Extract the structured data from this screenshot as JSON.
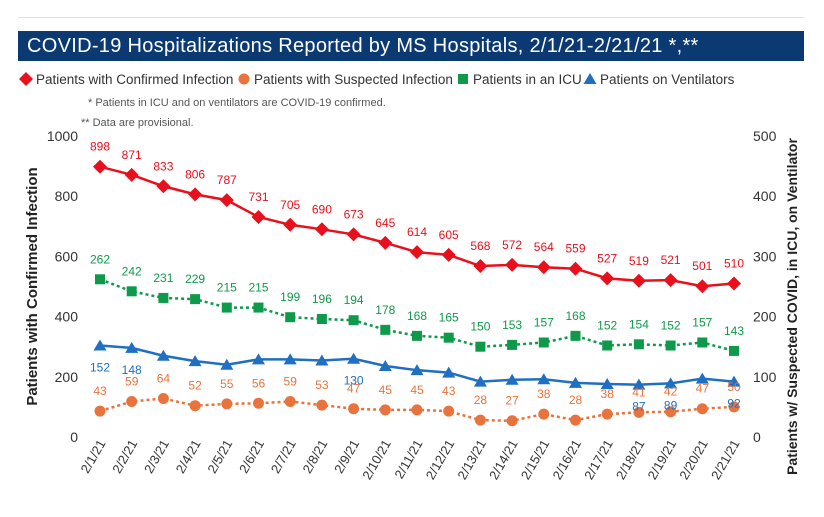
{
  "title": "COVID-19 Hospitalizations Reported by MS Hospitals, 2/1/21-2/21/21 *,**",
  "notes": [
    "* Patients in ICU and on ventilators are COVID-19 confirmed.",
    "** Data are provisional."
  ],
  "colors": {
    "title_bg": "#0b3a73",
    "confirmed": "#e8101c",
    "suspected": "#e8733c",
    "icu": "#0e9a4a",
    "ventilators": "#1f6fc2"
  },
  "chart_data": {
    "type": "line",
    "title": "COVID-19 Hospitalizations Reported by MS Hospitals, 2/1/21-2/21/21 *,**",
    "ylabel": "Patients with Confirmed Infection",
    "y2label": "Patients w/ Suspected COVID, in ICU, on Ventilator",
    "ylim": [
      0,
      1000
    ],
    "y2lim": [
      0,
      500
    ],
    "yticks": [
      0,
      200,
      400,
      600,
      800,
      1000
    ],
    "y2ticks": [
      0,
      100,
      200,
      300,
      400,
      500
    ],
    "legend_position": "top",
    "grid": false,
    "categories": [
      "2/1/21",
      "2/2/21",
      "2/3/21",
      "2/4/21",
      "2/5/21",
      "2/6/21",
      "2/7/21",
      "2/8/21",
      "2/9/21",
      "2/10/21",
      "2/11/21",
      "2/12/21",
      "2/13/21",
      "2/14/21",
      "2/15/21",
      "2/16/21",
      "2/17/21",
      "2/18/21",
      "2/19/21",
      "2/20/21",
      "2/21/21"
    ],
    "series": [
      {
        "name": "Patients with Confirmed Infection",
        "axis": "left",
        "marker": "diamond",
        "dashed": false,
        "color": "#e8101c",
        "values": [
          898,
          871,
          833,
          806,
          787,
          731,
          705,
          690,
          673,
          645,
          614,
          605,
          568,
          572,
          564,
          559,
          527,
          519,
          521,
          501,
          510
        ],
        "labels": [
          "898",
          "871",
          "833",
          "806",
          "787",
          "731",
          "705",
          "690",
          "673",
          "645",
          "614",
          "605",
          "568",
          "572",
          "564",
          "559",
          "527",
          "519",
          "521",
          "501",
          "510"
        ]
      },
      {
        "name": "Patients with Suspected Infection",
        "axis": "right",
        "marker": "circle",
        "dashed": true,
        "color": "#e8733c",
        "values": [
          43,
          59,
          64,
          52,
          55,
          56,
          59,
          53,
          47,
          45,
          45,
          43,
          28,
          27,
          38,
          28,
          38,
          41,
          42,
          47,
          50
        ],
        "labels": [
          "43",
          "59",
          "64",
          "52",
          "55",
          "56",
          "59",
          "53",
          "47",
          "45",
          "45",
          "43",
          "28",
          "27",
          "38",
          "28",
          "38",
          "41",
          "42",
          "47",
          "50"
        ]
      },
      {
        "name": "Patients in an ICU",
        "axis": "right",
        "marker": "square",
        "dashed": true,
        "color": "#0e9a4a",
        "values": [
          262,
          242,
          231,
          229,
          215,
          215,
          199,
          196,
          194,
          178,
          168,
          165,
          150,
          153,
          157,
          168,
          152,
          154,
          152,
          157,
          143
        ],
        "labels": [
          "262",
          "242",
          "231",
          "229",
          "215",
          "215",
          "199",
          "196",
          "194",
          "178",
          "168",
          "165",
          "150",
          "153",
          "157",
          "168",
          "152",
          "154",
          "152",
          "157",
          "143"
        ]
      },
      {
        "name": "Patients on Ventilators",
        "axis": "right",
        "marker": "triangle",
        "dashed": false,
        "color": "#1f6fc2",
        "values": [
          152,
          148,
          135,
          126,
          120,
          129,
          129,
          127,
          130,
          118,
          111,
          107,
          92,
          95,
          96,
          90,
          88,
          87,
          89,
          97,
          92
        ],
        "labels": [
          "152",
          "148",
          "",
          "",
          "",
          "",
          "",
          "",
          "130",
          "",
          "",
          "",
          "",
          "",
          "",
          "",
          "",
          "87",
          "89",
          "",
          "92"
        ]
      }
    ]
  }
}
